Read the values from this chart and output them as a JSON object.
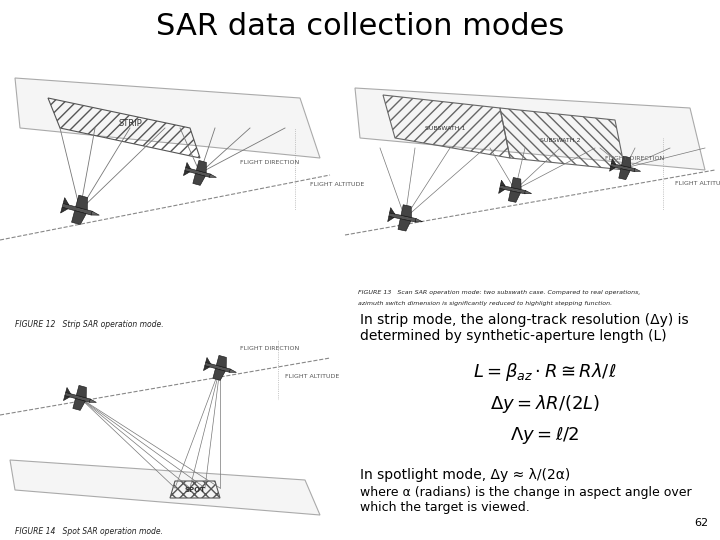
{
  "title": "SAR data collection modes",
  "title_fontsize": 22,
  "background_color": "#ffffff",
  "text_color": "#000000",
  "strip_mode_text_line1": "In strip mode, the along-track resolution (Δy) is",
  "strip_mode_text_line2": "determined by synthetic-aperture length (L)",
  "spotlight_text1": "In spotlight mode, Δy ≈ λ/(2α)",
  "spotlight_text2": "where α (radians) is the change in aspect angle over",
  "spotlight_text3": "which the target is viewed.",
  "page_number": "62",
  "fig12_caption": "FIGURE 12   Strip SAR operation mode.",
  "fig14_caption": "FIGURE 14   Spot SAR operation mode.",
  "fig13_caption_l1": "FIGURE 13   Scan SAR operation mode: two subswath case. Compared to real operations,",
  "fig13_caption_l2": "azimuth switch dimension is significantly reduced to highlight stepping function."
}
